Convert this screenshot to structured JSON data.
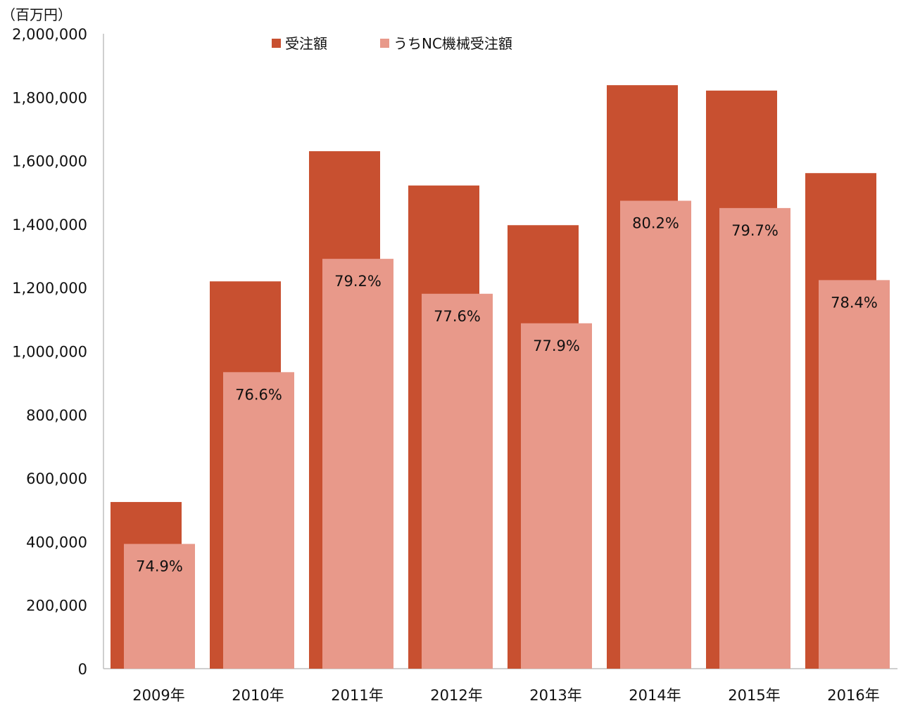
{
  "chart_data": {
    "type": "bar",
    "unit_label": "（百万円）",
    "categories": [
      "2009年",
      "2010年",
      "2011年",
      "2012年",
      "2013年",
      "2014年",
      "2015年",
      "2016年"
    ],
    "series": [
      {
        "name": "受注額",
        "color": "#c85030",
        "values": [
          525000,
          1220000,
          1630000,
          1522000,
          1397000,
          1838000,
          1821000,
          1561000
        ]
      },
      {
        "name": "うちNC機械受注額",
        "color": "#e8998a",
        "values": [
          393000,
          934000,
          1291000,
          1181000,
          1088000,
          1474000,
          1451000,
          1224000
        ]
      }
    ],
    "data_labels": [
      "74.9%",
      "76.6%",
      "79.2%",
      "77.6%",
      "77.9%",
      "80.2%",
      "79.7%",
      "78.4%"
    ],
    "ylim": [
      0,
      2000000
    ],
    "yticks": [
      "0",
      "200,000",
      "400,000",
      "600,000",
      "800,000",
      "1,000,000",
      "1,200,000",
      "1,400,000",
      "1,600,000",
      "1,800,000",
      "2,000,000"
    ],
    "grid": false,
    "legend_position": "top"
  }
}
